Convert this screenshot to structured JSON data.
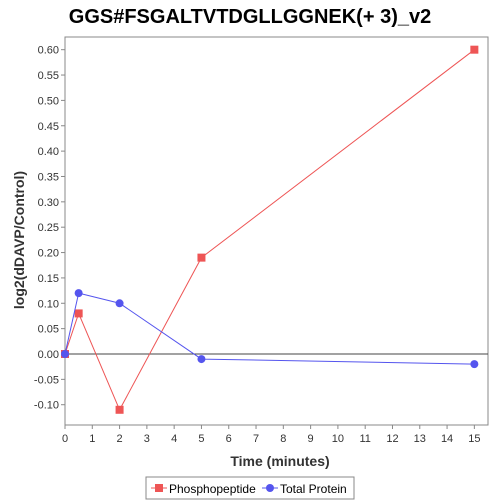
{
  "chart_data": {
    "type": "line",
    "title": "GGS#FSGALTVTDGLLGGNEK(+ 3)_v2",
    "xlabel": "Time (minutes)",
    "ylabel": "log2(dDAVP/Control)",
    "xlim": [
      0,
      15.5
    ],
    "ylim": [
      -0.14,
      0.625
    ],
    "x_ticks": [
      0,
      1,
      2,
      3,
      4,
      5,
      6,
      7,
      8,
      9,
      10,
      11,
      12,
      13,
      14,
      15
    ],
    "y_ticks": [
      -0.1,
      -0.05,
      0.0,
      0.05,
      0.1,
      0.15,
      0.2,
      0.25,
      0.3,
      0.35,
      0.4,
      0.45,
      0.5,
      0.55,
      0.6
    ],
    "grid": false,
    "legend_position": "bottom-center",
    "series": [
      {
        "name": "Phosphopeptide",
        "color": "#ee5555",
        "marker": "square",
        "x": [
          0,
          0.5,
          2,
          5,
          15
        ],
        "y": [
          0.0,
          0.08,
          -0.11,
          0.19,
          0.6
        ]
      },
      {
        "name": "Total Protein",
        "color": "#5555ee",
        "marker": "circle",
        "x": [
          0,
          0.5,
          2,
          5,
          15
        ],
        "y": [
          0.0,
          0.12,
          0.1,
          -0.01,
          -0.02
        ]
      }
    ]
  }
}
